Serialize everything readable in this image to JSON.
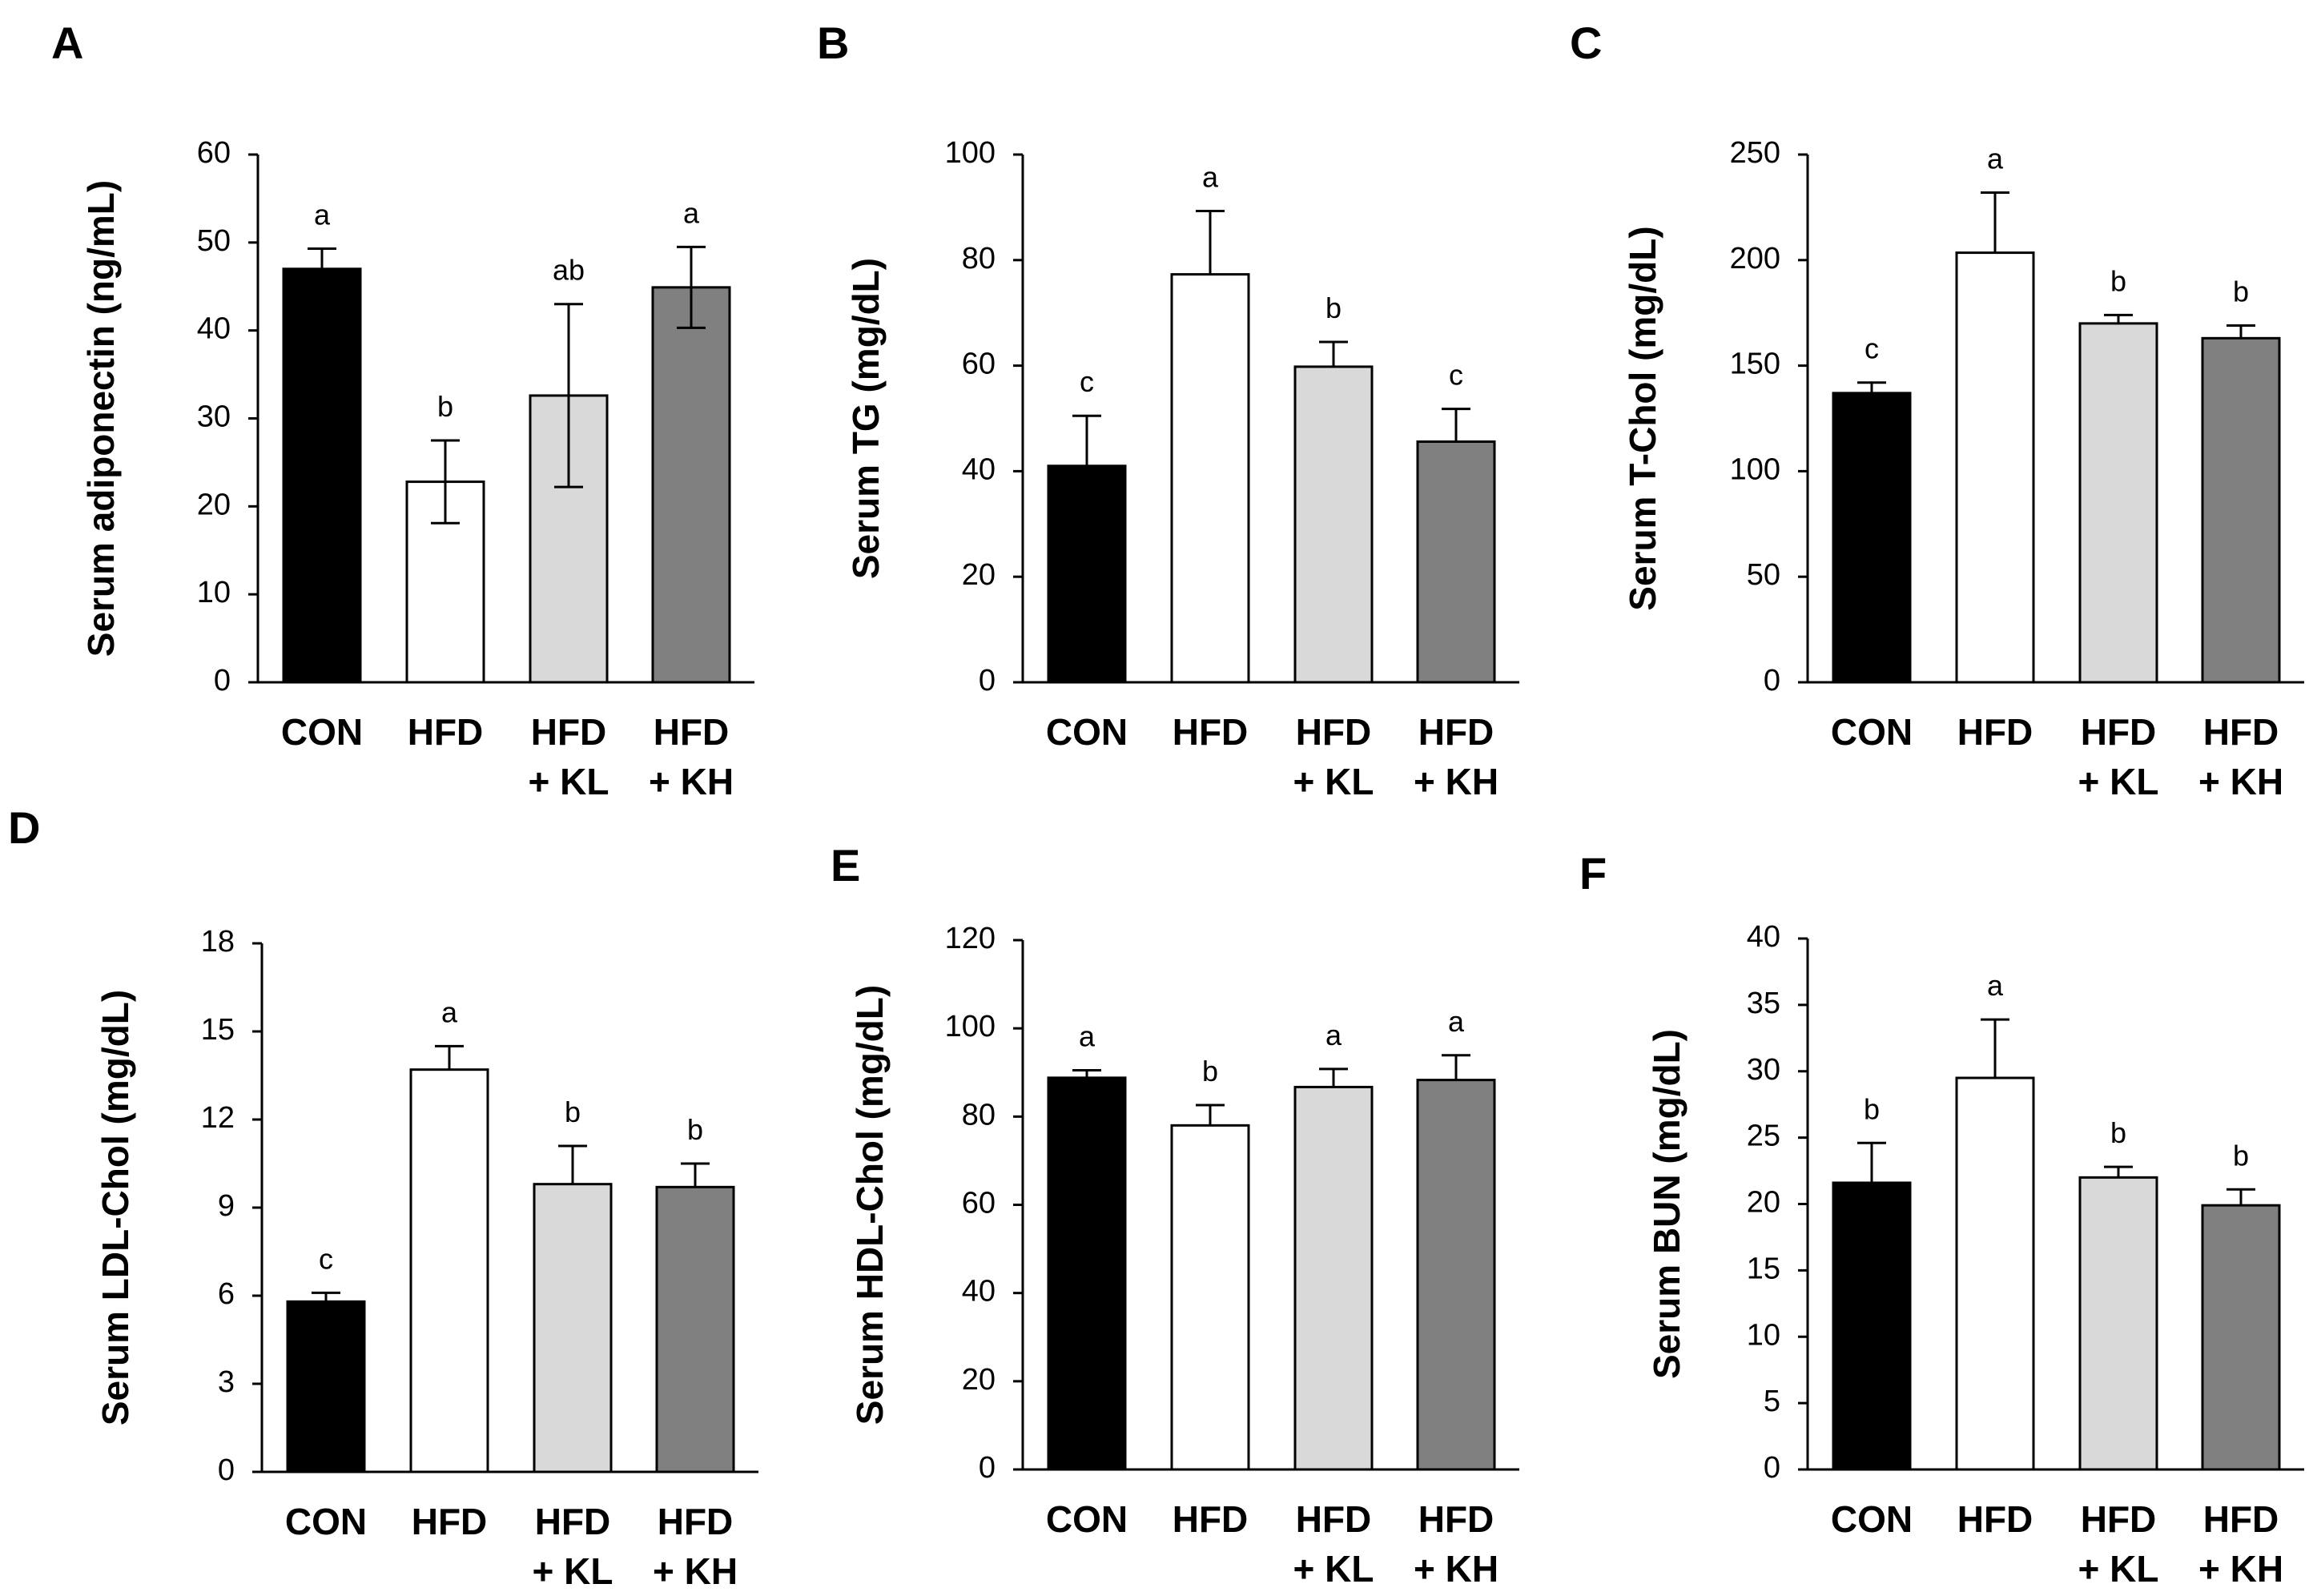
{
  "chart_data": [
    {
      "panel": "A",
      "type": "bar",
      "ylabel": "Serum adiponectin (ng/mL)",
      "ylim": [
        0,
        60
      ],
      "yticks": [
        0,
        10,
        20,
        30,
        40,
        50,
        60
      ],
      "categories": [
        [
          "CON"
        ],
        [
          "HFD"
        ],
        [
          "HFD",
          "+ KL"
        ],
        [
          "HFD",
          "+ KH"
        ]
      ],
      "values": [
        47,
        22.8,
        32.6,
        44.9
      ],
      "errors": [
        2.3,
        4.7,
        10.4,
        4.6
      ],
      "error_style": "both",
      "letters": [
        "a",
        "b",
        "ab",
        "a"
      ],
      "colors": [
        "#000000",
        "#ffffff",
        "#d9d9d9",
        "#808080"
      ]
    },
    {
      "panel": "B",
      "type": "bar",
      "ylabel": "Serum TG (mg/dL)",
      "ylim": [
        0,
        100
      ],
      "yticks": [
        0,
        20,
        40,
        60,
        80,
        100
      ],
      "categories": [
        [
          "CON"
        ],
        [
          "HFD"
        ],
        [
          "HFD",
          "+ KL"
        ],
        [
          "HFD",
          "+ KH"
        ]
      ],
      "values": [
        41,
        77.3,
        59.8,
        45.6
      ],
      "errors": [
        9.5,
        12,
        4.7,
        6.2
      ],
      "error_style": "up",
      "letters": [
        "c",
        "a",
        "b",
        "c"
      ],
      "colors": [
        "#000000",
        "#ffffff",
        "#d9d9d9",
        "#808080"
      ]
    },
    {
      "panel": "C",
      "type": "bar",
      "ylabel": "Serum T-Chol (mg/dL)",
      "ylim": [
        0,
        250
      ],
      "yticks": [
        0,
        50,
        100,
        150,
        200,
        250
      ],
      "categories": [
        [
          "CON"
        ],
        [
          "HFD"
        ],
        [
          "HFD",
          "+ KL"
        ],
        [
          "HFD",
          "+ KH"
        ]
      ],
      "values": [
        137,
        203.5,
        170,
        163
      ],
      "errors": [
        5,
        28.5,
        4,
        6
      ],
      "error_style": "up",
      "letters": [
        "c",
        "a",
        "b",
        "b"
      ],
      "colors": [
        "#000000",
        "#ffffff",
        "#d9d9d9",
        "#808080"
      ]
    },
    {
      "panel": "D",
      "type": "bar",
      "ylabel": "Serum LDL-Chol (mg/dL)",
      "ylim": [
        0,
        18
      ],
      "yticks": [
        0,
        3,
        6,
        9,
        12,
        15,
        18
      ],
      "categories": [
        [
          "CON"
        ],
        [
          "HFD"
        ],
        [
          "HFD",
          "+ KL"
        ],
        [
          "HFD",
          "+ KH"
        ]
      ],
      "values": [
        5.8,
        13.7,
        9.8,
        9.7
      ],
      "errors": [
        0.3,
        0.8,
        1.3,
        0.8
      ],
      "error_style": "up",
      "letters": [
        "c",
        "a",
        "b",
        "b"
      ],
      "colors": [
        "#000000",
        "#ffffff",
        "#d9d9d9",
        "#808080"
      ]
    },
    {
      "panel": "E",
      "type": "bar",
      "ylabel": "Serum HDL-Chol (mg/dL)",
      "ylim": [
        0,
        120
      ],
      "yticks": [
        0,
        20,
        40,
        60,
        80,
        100,
        120
      ],
      "categories": [
        [
          "CON"
        ],
        [
          "HFD"
        ],
        [
          "HFD",
          "+ KL"
        ],
        [
          "HFD",
          "+ KH"
        ]
      ],
      "values": [
        88.8,
        78,
        86.7,
        88.3
      ],
      "errors": [
        1.7,
        4.6,
        4.1,
        5.6
      ],
      "error_style": "up",
      "letters": [
        "a",
        "b",
        "a",
        "a"
      ],
      "colors": [
        "#000000",
        "#ffffff",
        "#d9d9d9",
        "#808080"
      ]
    },
    {
      "panel": "F",
      "type": "bar",
      "ylabel": "Serum BUN (mg/dL)",
      "ylim": [
        0,
        40
      ],
      "yticks": [
        0,
        5,
        10,
        15,
        20,
        25,
        30,
        35,
        40
      ],
      "categories": [
        [
          "CON"
        ],
        [
          "HFD"
        ],
        [
          "HFD",
          "+ KL"
        ],
        [
          "HFD",
          "+ KH"
        ]
      ],
      "values": [
        21.6,
        29.5,
        22,
        19.9
      ],
      "errors": [
        3,
        4.4,
        0.8,
        1.2
      ],
      "error_style": "up",
      "letters": [
        "b",
        "a",
        "b",
        "b"
      ],
      "colors": [
        "#000000",
        "#ffffff",
        "#d9d9d9",
        "#808080"
      ]
    }
  ]
}
